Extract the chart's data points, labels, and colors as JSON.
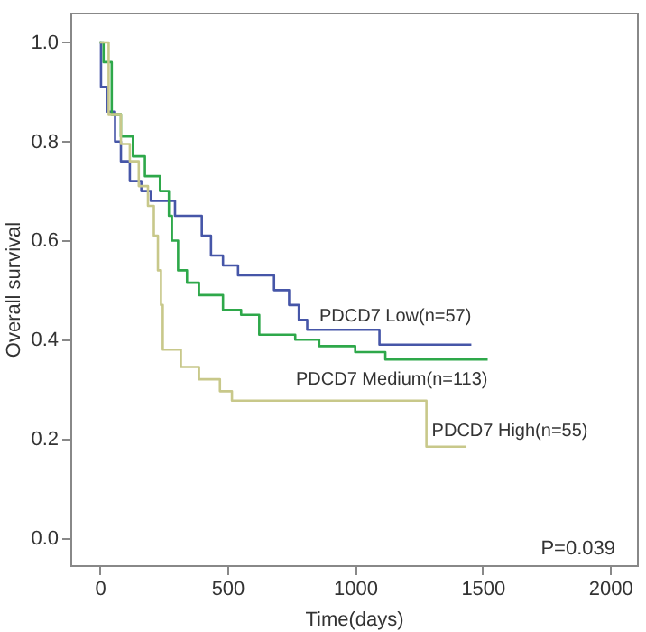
{
  "chart_data": {
    "type": "step",
    "xlabel": "Time(days)",
    "ylabel": "Overall survival",
    "xlim": [
      -115,
      2105
    ],
    "ylim": [
      -0.055,
      1.06
    ],
    "xticks": [
      0,
      500,
      1000,
      1500,
      2000
    ],
    "yticks": [
      {
        "value": 0,
        "label": "0.0"
      },
      0.2,
      0.4,
      0.6,
      0.8,
      {
        "value": 1,
        "label": "1.0"
      }
    ],
    "grid": false,
    "line_style": "solid",
    "annotations": [
      "P=0.039"
    ],
    "series": [
      {
        "name": "PDCD7 Low(n=57)",
        "color": "#4656a8",
        "x": [
          0,
          5,
          30,
          60,
          83,
          118,
          163,
          200,
          295,
          400,
          436,
          483,
          542,
          683,
          742,
          780,
          813,
          1096,
          1456
        ],
        "values": [
          1.0,
          0.91,
          0.86,
          0.8,
          0.76,
          0.72,
          0.7,
          0.68,
          0.65,
          0.61,
          0.57,
          0.55,
          0.53,
          0.5,
          0.47,
          0.44,
          0.42,
          0.39,
          0.39
        ]
      },
      {
        "name": "PDCD7 Medium(n=113)",
        "color": "#2ea84a",
        "x": [
          0,
          15,
          47,
          83,
          130,
          177,
          236,
          271,
          283,
          307,
          342,
          389,
          483,
          554,
          625,
          766,
          860,
          1001,
          1119,
          1520
        ],
        "values": [
          1.0,
          0.96,
          0.855,
          0.81,
          0.77,
          0.73,
          0.7,
          0.65,
          0.6,
          0.54,
          0.515,
          0.49,
          0.46,
          0.45,
          0.41,
          0.4,
          0.387,
          0.375,
          0.36,
          0.36
        ]
      },
      {
        "name": "PDCD7 High(n=55)",
        "color": "#c8c88a",
        "x": [
          0,
          35,
          83,
          118,
          153,
          189,
          212,
          228,
          240,
          247,
          318,
          389,
          471,
          518,
          1280,
          1437
        ],
        "values": [
          1.0,
          0.855,
          0.795,
          0.76,
          0.71,
          0.67,
          0.61,
          0.54,
          0.47,
          0.38,
          0.345,
          0.32,
          0.296,
          0.277,
          0.184,
          0.184
        ]
      }
    ]
  }
}
